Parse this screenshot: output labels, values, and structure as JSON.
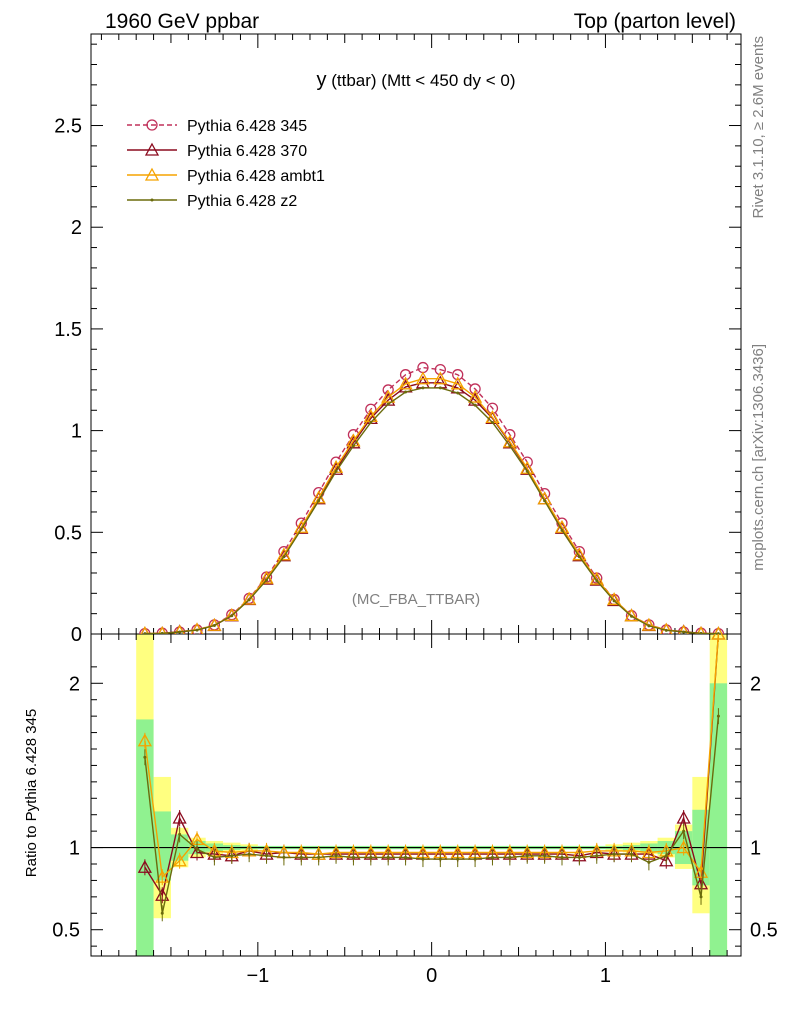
{
  "header": {
    "left": "1960 GeV ppbar",
    "right": "Top (parton level)"
  },
  "side": {
    "rivet": "Rivet 3.1.10, ≥ 2.6M events",
    "mcplots": "mcplots.cern.ch [arXiv:1306.3436]"
  },
  "plot": {
    "title_var": "y",
    "title_rest": " (ttbar) (Mtt < 450 dy < 0)",
    "watermark": "(MC_FBA_TTBAR)",
    "ratio_ylabel": "Ratio to Pythia 6.428 345"
  },
  "chart_data": [
    {
      "type": "line",
      "xlim": [
        -1.96,
        1.78
      ],
      "ylim": [
        0,
        2.95
      ],
      "yticks": [
        0.5,
        1,
        1.5,
        2,
        2.5
      ],
      "ytick_labels": [
        "0.5",
        "1",
        "1.5",
        "2",
        "2.5"
      ],
      "extra_tick_label": "0",
      "legend_position": "top-left",
      "x": [
        -1.65,
        -1.55,
        -1.45,
        -1.35,
        -1.25,
        -1.15,
        -1.05,
        -0.95,
        -0.85,
        -0.75,
        -0.65,
        -0.55,
        -0.45,
        -0.35,
        -0.25,
        -0.15,
        -0.05,
        0.05,
        0.15,
        0.25,
        0.35,
        0.45,
        0.55,
        0.65,
        0.75,
        0.85,
        0.95,
        1.05,
        1.15,
        1.25,
        1.35,
        1.45,
        1.55,
        1.65
      ],
      "series": [
        {
          "name": "Pythia 6.428 345",
          "color": "#c0305a",
          "dashed": true,
          "marker": "circle",
          "values": [
            0.002,
            0.004,
            0.01,
            0.02,
            0.045,
            0.095,
            0.175,
            0.28,
            0.405,
            0.545,
            0.695,
            0.845,
            0.98,
            1.105,
            1.2,
            1.275,
            1.31,
            1.3,
            1.275,
            1.205,
            1.11,
            0.98,
            0.845,
            0.69,
            0.545,
            0.405,
            0.275,
            0.17,
            0.09,
            0.045,
            0.02,
            0.01,
            0.004,
            0.002
          ]
        },
        {
          "name": "Pythia 6.428 370",
          "color": "#8b0a1e",
          "dashed": false,
          "marker": "triangle",
          "values": [
            0.002,
            0.003,
            0.012,
            0.02,
            0.042,
            0.09,
            0.17,
            0.27,
            0.385,
            0.52,
            0.665,
            0.81,
            0.94,
            1.06,
            1.15,
            1.215,
            1.235,
            1.235,
            1.21,
            1.15,
            1.06,
            0.94,
            0.81,
            0.665,
            0.52,
            0.385,
            0.265,
            0.165,
            0.09,
            0.042,
            0.019,
            0.012,
            0.003,
            0.002
          ]
        },
        {
          "name": "Pythia 6.428 ambt1",
          "color": "#f5a300",
          "dashed": false,
          "marker": "triangle",
          "values": [
            0.003,
            0.003,
            0.01,
            0.021,
            0.043,
            0.092,
            0.172,
            0.275,
            0.39,
            0.525,
            0.67,
            0.82,
            0.95,
            1.07,
            1.165,
            1.23,
            1.255,
            1.255,
            1.23,
            1.165,
            1.065,
            0.945,
            0.815,
            0.665,
            0.525,
            0.39,
            0.27,
            0.17,
            0.09,
            0.044,
            0.02,
            0.01,
            0.003,
            0.002
          ]
        },
        {
          "name": "Pythia 6.428 z2",
          "color": "#6b6b0c",
          "dashed": false,
          "marker": "dot",
          "values": [
            0.002,
            0.003,
            0.01,
            0.019,
            0.042,
            0.09,
            0.168,
            0.265,
            0.38,
            0.515,
            0.655,
            0.8,
            0.925,
            1.04,
            1.13,
            1.19,
            1.21,
            1.21,
            1.185,
            1.125,
            1.04,
            0.925,
            0.8,
            0.655,
            0.51,
            0.38,
            0.262,
            0.163,
            0.087,
            0.04,
            0.018,
            0.01,
            0.003,
            0.002
          ]
        }
      ]
    },
    {
      "type": "line",
      "xlim": [
        -1.96,
        1.78
      ],
      "ylim": [
        0.34,
        2.3
      ],
      "xticks": [
        -1,
        0,
        1
      ],
      "xtick_labels": [
        "−1",
        "0",
        "1"
      ],
      "yticks": [
        0.5,
        1,
        2
      ],
      "ytick_labels": [
        "0.5",
        "1",
        "2"
      ],
      "reference_line": 1,
      "band_x": [
        -1.65,
        -1.55,
        -1.45,
        -1.35,
        -1.25,
        -1.15,
        -1.05,
        1.05,
        1.15,
        1.25,
        1.35,
        1.45,
        1.55,
        1.65
      ],
      "band_green": [
        0.34,
        0.8,
        0.92,
        0.96,
        0.975,
        0.985,
        0.99,
        0.99,
        0.985,
        0.975,
        0.96,
        0.9,
        0.77,
        0.34
      ],
      "band_green_hi": [
        1.78,
        1.22,
        1.08,
        1.04,
        1.025,
        1.015,
        1.01,
        1.01,
        1.015,
        1.025,
        1.04,
        1.1,
        1.23,
        2.0
      ],
      "band_yellow": [
        0.34,
        0.57,
        0.88,
        0.94,
        0.96,
        0.97,
        0.98,
        0.98,
        0.97,
        0.96,
        0.94,
        0.87,
        0.6,
        0.34
      ],
      "band_yellow_hi": [
        2.3,
        1.43,
        1.12,
        1.06,
        1.04,
        1.03,
        1.02,
        1.02,
        1.03,
        1.04,
        1.06,
        1.14,
        1.43,
        2.3
      ],
      "series": [
        {
          "name": "Pythia 6.428 370",
          "values": [
            0.88,
            0.71,
            1.18,
            0.97,
            0.96,
            0.95,
            0.98,
            0.96,
            0.97,
            0.96,
            0.96,
            0.96,
            0.96,
            0.96,
            0.96,
            0.96,
            0.96,
            0.96,
            0.96,
            0.96,
            0.96,
            0.96,
            0.96,
            0.96,
            0.96,
            0.95,
            0.97,
            0.96,
            0.96,
            0.96,
            0.92,
            1.18,
            0.78,
            2.3
          ]
        },
        {
          "name": "Pythia 6.428 ambt1",
          "values": [
            1.65,
            0.82,
            0.92,
            1.05,
            0.98,
            0.97,
            0.98,
            0.98,
            0.97,
            0.97,
            0.96,
            0.97,
            0.97,
            0.97,
            0.97,
            0.97,
            0.97,
            0.97,
            0.97,
            0.97,
            0.97,
            0.97,
            0.97,
            0.97,
            0.97,
            0.97,
            0.98,
            0.98,
            0.98,
            0.97,
            0.98,
            1.0,
            0.85,
            2.3
          ]
        },
        {
          "name": "Pythia 6.428 z2",
          "values": [
            1.55,
            0.6,
            1.08,
            0.99,
            0.94,
            0.95,
            0.96,
            0.95,
            0.94,
            0.94,
            0.94,
            0.95,
            0.94,
            0.94,
            0.94,
            0.94,
            0.93,
            0.93,
            0.93,
            0.93,
            0.94,
            0.94,
            0.95,
            0.95,
            0.94,
            0.94,
            0.95,
            0.96,
            0.96,
            0.91,
            0.95,
            1.1,
            0.7,
            1.8
          ]
        }
      ]
    }
  ]
}
